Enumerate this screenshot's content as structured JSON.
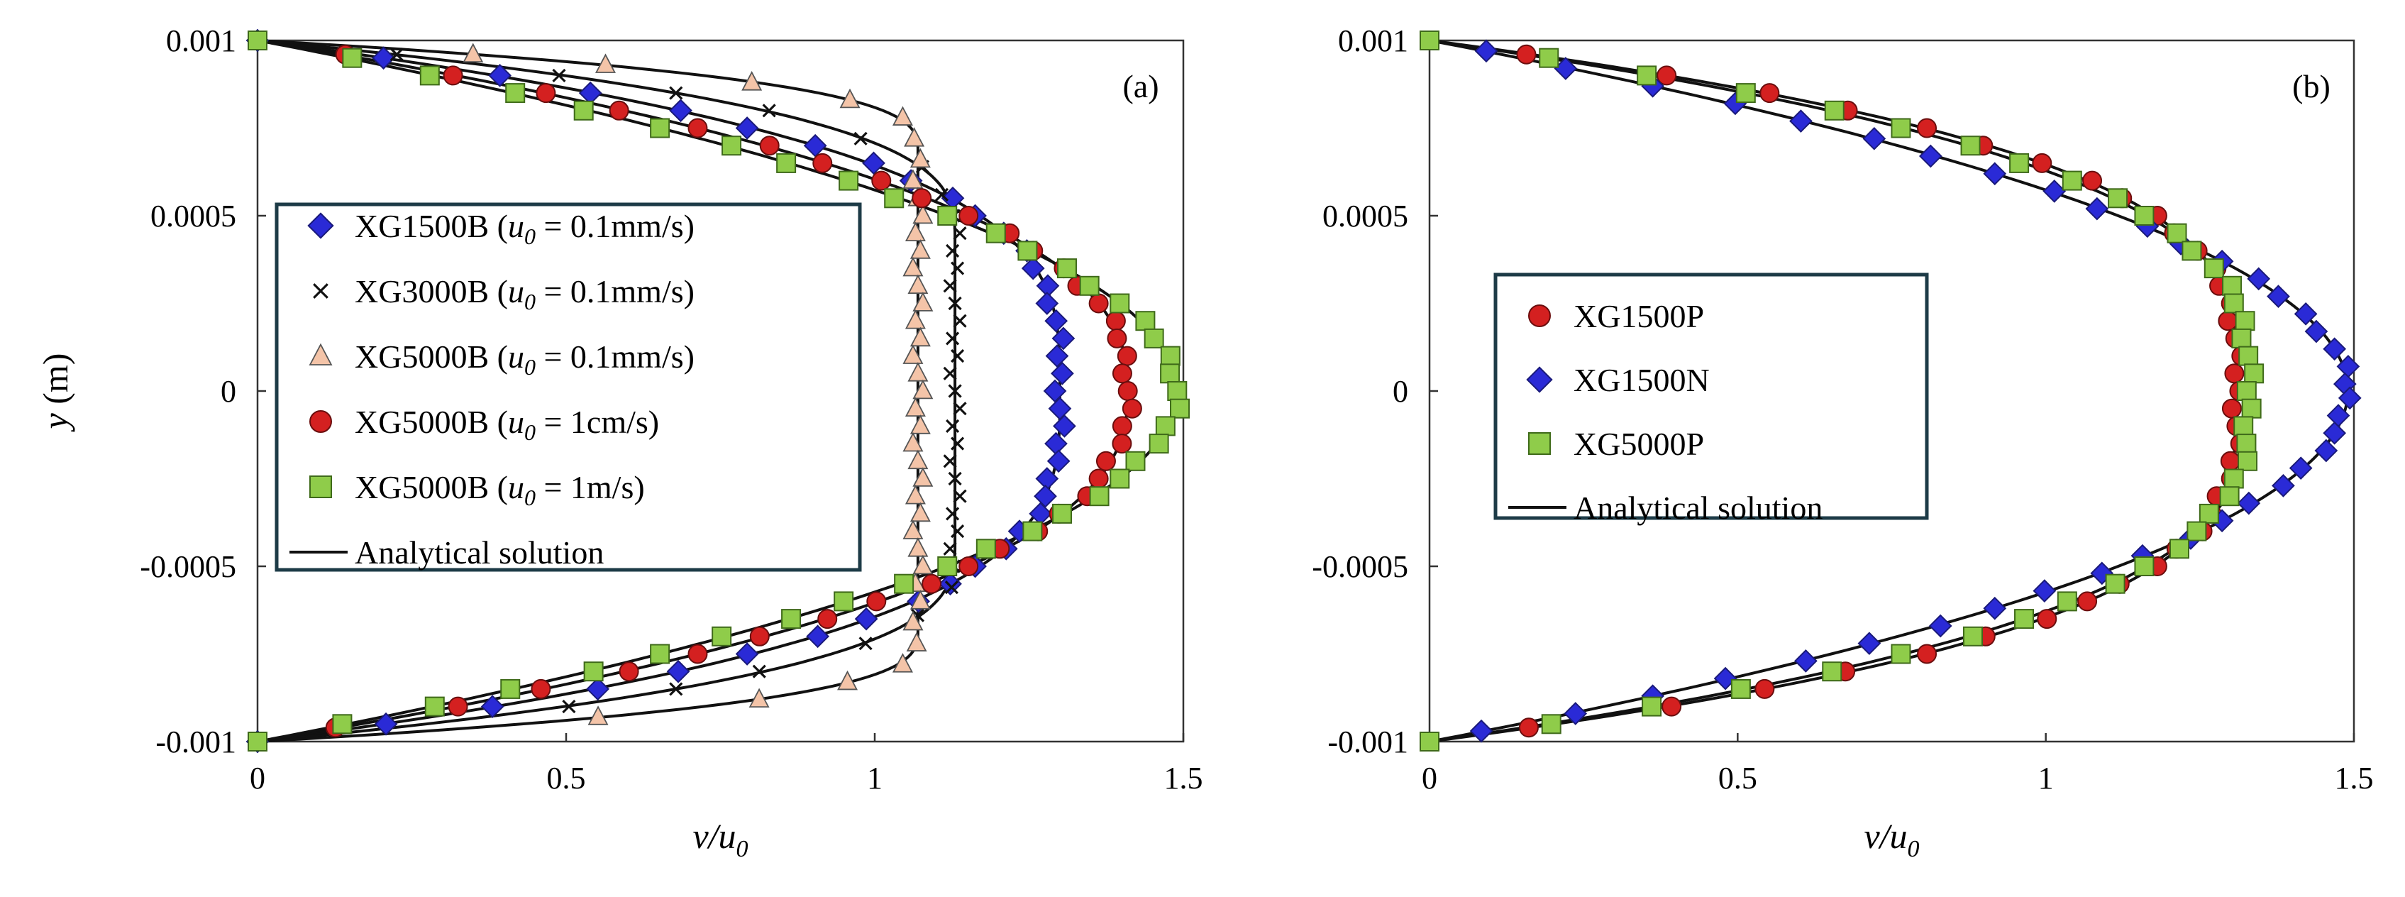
{
  "chart_data": [
    {
      "type": "scatter",
      "panel_label": "(a)",
      "xlabel": "v/u0",
      "xlabel_main": "v/u",
      "xlabel_sub": "0",
      "ylabel": "y (m)",
      "ylabel_main": "y",
      "ylabel_rest": " (m)",
      "xlim": [
        0,
        1.5
      ],
      "ylim": [
        -0.001,
        0.001
      ],
      "xticks": [
        "0",
        "0.5",
        "1",
        "1.5"
      ],
      "yticks": [
        "0.001",
        "0.0005",
        "0",
        "-0.0005",
        "-0.001"
      ],
      "legend_position": "left-center",
      "series": [
        {
          "name": "XG1500B (u0 = 0.1mm/s)",
          "legend": {
            "pre": "XG1500B (",
            "u": "u",
            "sub": "0",
            "post": " = 0.1mm/s)"
          },
          "marker": "diamond",
          "color": "#2a2ad6",
          "edge": "#1a1a7a",
          "profile": {
            "kind": "power",
            "umax": 1.3,
            "n": 3.33
          },
          "y": [
            1.0,
            0.95,
            0.9,
            0.85,
            0.8,
            0.75,
            0.7,
            0.65,
            0.6,
            0.55,
            0.5,
            0.45,
            0.4,
            0.35,
            0.3,
            0.25,
            0.2,
            0.15,
            0.1,
            0.05,
            0.0,
            -0.05,
            -0.1,
            -0.15,
            -0.2,
            -0.25,
            -0.3,
            -0.35,
            -0.4,
            -0.45,
            -0.5,
            -0.55,
            -0.6,
            -0.65,
            -0.7,
            -0.75,
            -0.8,
            -0.85,
            -0.9,
            -0.95,
            -1.0
          ]
        },
        {
          "name": "XG3000B (u0 = 0.1mm/s)",
          "legend": {
            "pre": "XG3000B (",
            "u": "u",
            "sub": "0",
            "post": " = 0.1mm/s)"
          },
          "marker": "cross",
          "color": "#111111",
          "edge": "#111111",
          "profile": {
            "kind": "plug",
            "uplug": 1.13,
            "yp": 0.43,
            "n": 3.0
          },
          "y": [
            0.96,
            0.9,
            0.85,
            0.8,
            0.72,
            0.64,
            0.56,
            0.5,
            0.45,
            0.4,
            0.35,
            0.3,
            0.25,
            0.2,
            0.15,
            0.1,
            0.05,
            0.0,
            -0.05,
            -0.1,
            -0.15,
            -0.2,
            -0.25,
            -0.3,
            -0.35,
            -0.4,
            -0.45,
            -0.5,
            -0.56,
            -0.64,
            -0.72,
            -0.8,
            -0.85,
            -0.9
          ]
        },
        {
          "name": "XG5000B (u0 = 0.1mm/s)",
          "legend": {
            "pre": "XG5000B (",
            "u": "u",
            "sub": "0",
            "post": " = 0.1mm/s)"
          },
          "marker": "triangle",
          "color": "#f4c4a8",
          "edge": "#555555",
          "profile": {
            "kind": "plug",
            "uplug": 1.07,
            "yp": 0.68,
            "n": 3.0
          },
          "y": [
            0.96,
            0.93,
            0.88,
            0.83,
            0.78,
            0.72,
            0.66,
            0.6,
            0.55,
            0.5,
            0.45,
            0.4,
            0.35,
            0.3,
            0.25,
            0.2,
            0.15,
            0.1,
            0.05,
            0.0,
            -0.05,
            -0.1,
            -0.15,
            -0.2,
            -0.25,
            -0.3,
            -0.35,
            -0.4,
            -0.45,
            -0.5,
            -0.55,
            -0.6,
            -0.66,
            -0.72,
            -0.78,
            -0.83,
            -0.88,
            -0.93
          ]
        },
        {
          "name": "XG5000B (u0 = 1cm/s)",
          "legend": {
            "pre": "XG5000B (",
            "u": "u",
            "sub": "0",
            "post": " = 1cm/s)"
          },
          "marker": "circle",
          "color": "#d42020",
          "edge": "#6a0e0e",
          "profile": {
            "kind": "power",
            "umax": 1.41,
            "n": 2.45
          },
          "y": [
            0.96,
            0.9,
            0.85,
            0.8,
            0.75,
            0.7,
            0.65,
            0.6,
            0.55,
            0.5,
            0.45,
            0.4,
            0.35,
            0.3,
            0.25,
            0.2,
            0.15,
            0.1,
            0.05,
            0.0,
            -0.05,
            -0.1,
            -0.15,
            -0.2,
            -0.25,
            -0.3,
            -0.35,
            -0.4,
            -0.45,
            -0.5,
            -0.55,
            -0.6,
            -0.65,
            -0.7,
            -0.75,
            -0.8,
            -0.85,
            -0.9,
            -0.96
          ]
        },
        {
          "name": "XG5000B (u0 = 1m/s)",
          "legend": {
            "pre": "XG5000B (",
            "u": "u",
            "sub": "0",
            "post": " = 1m/s)"
          },
          "marker": "square",
          "color": "#8fcc4a",
          "edge": "#3f6a1a",
          "profile": {
            "kind": "power",
            "umax": 1.49,
            "n": 2.0
          },
          "y": [
            1.0,
            0.95,
            0.9,
            0.85,
            0.8,
            0.75,
            0.7,
            0.65,
            0.6,
            0.55,
            0.5,
            0.45,
            0.4,
            0.35,
            0.3,
            0.25,
            0.2,
            0.15,
            0.1,
            0.05,
            0.0,
            -0.05,
            -0.1,
            -0.15,
            -0.2,
            -0.25,
            -0.3,
            -0.35,
            -0.4,
            -0.45,
            -0.5,
            -0.55,
            -0.6,
            -0.65,
            -0.7,
            -0.75,
            -0.8,
            -0.85,
            -0.9,
            -0.95,
            -1.0
          ]
        },
        {
          "name": "Analytical solution",
          "legend": {
            "pre": "Analytical solution"
          },
          "marker": "line",
          "color": "#111111"
        }
      ]
    },
    {
      "type": "scatter",
      "panel_label": "(b)",
      "xlabel": "v/u0",
      "xlabel_main": "v/u",
      "xlabel_sub": "0",
      "ylabel": "",
      "xlim": [
        0,
        1.5
      ],
      "ylim": [
        -0.001,
        0.001
      ],
      "xticks": [
        "0",
        "0.5",
        "1",
        "1.5"
      ],
      "yticks": [
        "0.001",
        "0.0005",
        "0",
        "-0.0005",
        "-0.001"
      ],
      "legend_position": "left-center",
      "series": [
        {
          "name": "XG1500P",
          "legend": {
            "pre": "XG1500P"
          },
          "marker": "circle",
          "color": "#d42020",
          "edge": "#6a0e0e",
          "profile": {
            "kind": "power",
            "umax": 1.31,
            "n": 3.3
          },
          "y": [
            0.96,
            0.9,
            0.85,
            0.8,
            0.75,
            0.7,
            0.65,
            0.6,
            0.55,
            0.5,
            0.45,
            0.4,
            0.35,
            0.3,
            0.25,
            0.2,
            0.15,
            0.1,
            0.05,
            0.0,
            -0.05,
            -0.1,
            -0.15,
            -0.2,
            -0.25,
            -0.3,
            -0.35,
            -0.4,
            -0.45,
            -0.5,
            -0.55,
            -0.6,
            -0.65,
            -0.7,
            -0.75,
            -0.8,
            -0.85,
            -0.9,
            -0.96
          ]
        },
        {
          "name": "XG1500N",
          "legend": {
            "pre": "XG1500N"
          },
          "marker": "diamond",
          "color": "#2a2ad6",
          "edge": "#1a1a7a",
          "profile": {
            "kind": "power",
            "umax": 1.49,
            "n": 2.0
          },
          "y": [
            0.97,
            0.92,
            0.87,
            0.82,
            0.77,
            0.72,
            0.67,
            0.62,
            0.57,
            0.52,
            0.47,
            0.42,
            0.37,
            0.32,
            0.27,
            0.22,
            0.17,
            0.12,
            0.07,
            0.02,
            -0.02,
            -0.07,
            -0.12,
            -0.17,
            -0.22,
            -0.27,
            -0.32,
            -0.37,
            -0.42,
            -0.47,
            -0.52,
            -0.57,
            -0.62,
            -0.67,
            -0.72,
            -0.77,
            -0.82,
            -0.87,
            -0.92,
            -0.97
          ]
        },
        {
          "name": "XG5000P",
          "legend": {
            "pre": "XG5000P"
          },
          "marker": "square",
          "color": "#8fcc4a",
          "edge": "#3f6a1a",
          "profile": {
            "kind": "power",
            "umax": 1.33,
            "n": 3.0
          },
          "y": [
            1.0,
            0.95,
            0.9,
            0.85,
            0.8,
            0.75,
            0.7,
            0.65,
            0.6,
            0.55,
            0.5,
            0.45,
            0.4,
            0.35,
            0.3,
            0.25,
            0.2,
            0.15,
            0.1,
            0.05,
            0.0,
            -0.05,
            -0.1,
            -0.15,
            -0.2,
            -0.25,
            -0.3,
            -0.35,
            -0.4,
            -0.45,
            -0.5,
            -0.55,
            -0.6,
            -0.65,
            -0.7,
            -0.75,
            -0.8,
            -0.85,
            -0.9,
            -0.95,
            -1.0
          ]
        },
        {
          "name": "Analytical solution",
          "legend": {
            "pre": "Analytical solution"
          },
          "marker": "line",
          "color": "#111111"
        }
      ]
    }
  ]
}
